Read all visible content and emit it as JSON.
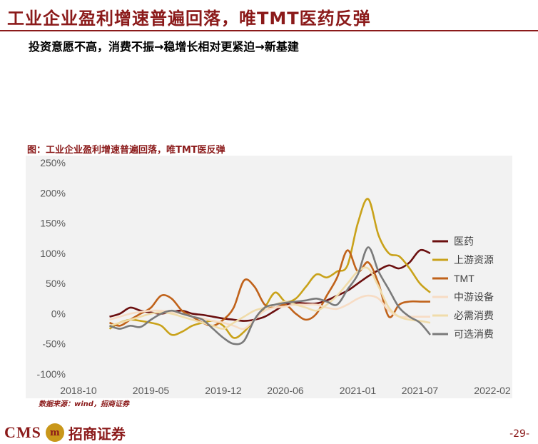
{
  "header": {
    "title": "工业企业盈利增速普遍回落，唯TMT医药反弹",
    "subtitle": "投资意愿不高，消费不振→稳增长相对更紧迫→新基建"
  },
  "figure": {
    "caption": "图：工业企业盈利增速普遍回落，唯TMT医反弹",
    "source": "数据来源：wind，招商证券"
  },
  "footer": {
    "logo_text": "CMS",
    "logo_cn": "招商证券",
    "page": "-29-"
  },
  "chart_data": {
    "type": "line",
    "x_ticks": [
      "2018-10",
      "2019-05",
      "2019-12",
      "2020-06",
      "2021-01",
      "2021-07",
      "2022-02"
    ],
    "y_ticks": [
      "-100%",
      "-50%",
      "0%",
      "50%",
      "100%",
      "150%",
      "200%",
      "250%"
    ],
    "ylim": [
      -100,
      250
    ],
    "xlim": [
      "2018-10",
      "2022-02"
    ],
    "grid": false,
    "legend_position": "right",
    "series": [
      {
        "name": "医药",
        "color": "#6b0f0f",
        "x": [
          "2019-01",
          "2019-02",
          "2019-03",
          "2019-04",
          "2019-05",
          "2019-06",
          "2019-07",
          "2019-08",
          "2019-09",
          "2019-10",
          "2019-11",
          "2019-12",
          "2020-01",
          "2020-02",
          "2020-03",
          "2020-04",
          "2020-05",
          "2020-06",
          "2020-07",
          "2020-08",
          "2020-09",
          "2020-10",
          "2020-11",
          "2020-12",
          "2021-01",
          "2021-02",
          "2021-03",
          "2021-04",
          "2021-05",
          "2021-06",
          "2021-07",
          "2021-08"
        ],
        "values": [
          -5,
          0,
          10,
          5,
          2,
          0,
          3,
          5,
          0,
          -2,
          -5,
          -8,
          -10,
          -12,
          -10,
          -5,
          5,
          15,
          18,
          17,
          17,
          22,
          30,
          38,
          50,
          62,
          72,
          80,
          75,
          85,
          105,
          100
        ]
      },
      {
        "name": "上游资源",
        "color": "#c9a21a",
        "x": [
          "2019-01",
          "2019-02",
          "2019-03",
          "2019-04",
          "2019-05",
          "2019-06",
          "2019-07",
          "2019-08",
          "2019-09",
          "2019-10",
          "2019-11",
          "2019-12",
          "2020-01",
          "2020-02",
          "2020-03",
          "2020-04",
          "2020-05",
          "2020-06",
          "2020-07",
          "2020-08",
          "2020-09",
          "2020-10",
          "2020-11",
          "2020-12",
          "2021-01",
          "2021-02",
          "2021-03",
          "2021-04",
          "2021-05",
          "2021-06",
          "2021-07",
          "2021-08"
        ],
        "values": [
          -25,
          -15,
          -10,
          -12,
          -15,
          -20,
          -35,
          -30,
          -20,
          -15,
          -12,
          -20,
          -40,
          -30,
          -10,
          10,
          35,
          20,
          25,
          45,
          65,
          60,
          70,
          80,
          150,
          190,
          130,
          100,
          95,
          75,
          50,
          35
        ]
      },
      {
        "name": "TMT",
        "color": "#c0621a",
        "x": [
          "2019-01",
          "2019-02",
          "2019-03",
          "2019-04",
          "2019-05",
          "2019-06",
          "2019-07",
          "2019-08",
          "2019-09",
          "2019-10",
          "2019-11",
          "2019-12",
          "2020-01",
          "2020-02",
          "2020-03",
          "2020-04",
          "2020-05",
          "2020-06",
          "2020-07",
          "2020-08",
          "2020-09",
          "2020-10",
          "2020-11",
          "2020-12",
          "2021-01",
          "2021-02",
          "2021-03",
          "2021-04",
          "2021-05",
          "2021-06",
          "2021-07",
          "2021-08"
        ],
        "values": [
          -15,
          -20,
          -10,
          0,
          10,
          30,
          25,
          5,
          -5,
          -15,
          -20,
          -10,
          10,
          55,
          45,
          15,
          10,
          15,
          0,
          -10,
          0,
          30,
          60,
          105,
          70,
          85,
          50,
          -5,
          15,
          20,
          20,
          20
        ]
      },
      {
        "name": "中游设备",
        "color": "#f7dcc4",
        "x": [
          "2019-01",
          "2019-02",
          "2019-03",
          "2019-04",
          "2019-05",
          "2019-06",
          "2019-07",
          "2019-08",
          "2019-09",
          "2019-10",
          "2019-11",
          "2019-12",
          "2020-01",
          "2020-02",
          "2020-03",
          "2020-04",
          "2020-05",
          "2020-06",
          "2020-07",
          "2020-08",
          "2020-09",
          "2020-10",
          "2020-11",
          "2020-12",
          "2021-01",
          "2021-02",
          "2021-03",
          "2021-04",
          "2021-05",
          "2021-06",
          "2021-07",
          "2021-08"
        ],
        "values": [
          -10,
          -5,
          0,
          3,
          5,
          5,
          3,
          0,
          -5,
          -8,
          -12,
          -15,
          -20,
          -25,
          -10,
          5,
          10,
          12,
          15,
          15,
          15,
          10,
          8,
          15,
          25,
          30,
          25,
          5,
          -5,
          -5,
          -5,
          -5
        ]
      },
      {
        "name": "必需消费",
        "color": "#f0dcaa",
        "x": [
          "2019-01",
          "2019-02",
          "2019-03",
          "2019-04",
          "2019-05",
          "2019-06",
          "2019-07",
          "2019-08",
          "2019-09",
          "2019-10",
          "2019-11",
          "2019-12",
          "2020-01",
          "2020-02",
          "2020-03",
          "2020-04",
          "2020-05",
          "2020-06",
          "2020-07",
          "2020-08",
          "2020-09",
          "2020-10",
          "2020-11",
          "2020-12",
          "2021-01",
          "2021-02",
          "2021-03",
          "2021-04",
          "2021-05",
          "2021-06",
          "2021-07",
          "2021-08"
        ],
        "values": [
          -20,
          -15,
          -10,
          -5,
          0,
          2,
          0,
          -5,
          -10,
          -15,
          -20,
          -25,
          -15,
          -5,
          5,
          10,
          15,
          20,
          15,
          10,
          5,
          15,
          30,
          50,
          70,
          75,
          45,
          10,
          -5,
          -10,
          -12,
          -15
        ]
      },
      {
        "name": "可选消费",
        "color": "#7a7a7a",
        "x": [
          "2019-01",
          "2019-02",
          "2019-03",
          "2019-04",
          "2019-05",
          "2019-06",
          "2019-07",
          "2019-08",
          "2019-09",
          "2019-10",
          "2019-11",
          "2019-12",
          "2020-01",
          "2020-02",
          "2020-03",
          "2020-04",
          "2020-05",
          "2020-06",
          "2020-07",
          "2020-08",
          "2020-09",
          "2020-10",
          "2020-11",
          "2020-12",
          "2021-01",
          "2021-02",
          "2021-03",
          "2021-04",
          "2021-05",
          "2021-06",
          "2021-07",
          "2021-08"
        ],
        "values": [
          -20,
          -25,
          -20,
          -22,
          -10,
          0,
          5,
          0,
          -5,
          -10,
          -25,
          -40,
          -50,
          -45,
          -10,
          10,
          15,
          18,
          20,
          22,
          25,
          20,
          15,
          40,
          65,
          110,
          70,
          40,
          10,
          -5,
          -15,
          -35
        ]
      }
    ]
  }
}
